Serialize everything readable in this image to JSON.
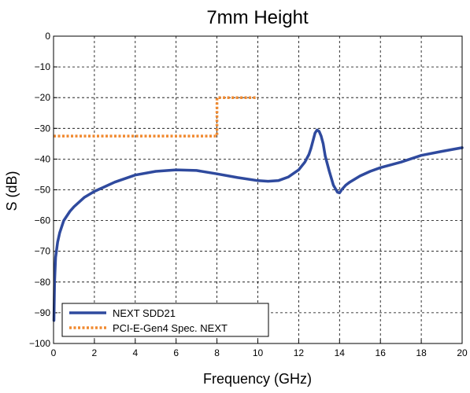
{
  "chart_data": {
    "type": "line",
    "title": "7mm Height",
    "xlabel": "Frequency (GHz)",
    "ylabel": "S (dB)",
    "xlim": [
      0,
      20
    ],
    "ylim": [
      -100,
      0
    ],
    "xticks": [
      0,
      2,
      4,
      6,
      8,
      10,
      12,
      14,
      16,
      18,
      20
    ],
    "yticks": [
      0,
      -10,
      -20,
      -30,
      -40,
      -50,
      -60,
      -70,
      -80,
      -90,
      -100
    ],
    "xtick_labels": [
      "0",
      "2",
      "4",
      "6",
      "8",
      "10",
      "12",
      "14",
      "16",
      "18",
      "20"
    ],
    "ytick_labels": [
      "0",
      "−10",
      "−20",
      "−30",
      "−40",
      "−50",
      "−60",
      "−70",
      "−80",
      "−90",
      "−100"
    ],
    "grid": true,
    "legend_position": "bottom-left",
    "series": [
      {
        "name": "NEXT SDD21",
        "color": "#2f4a9e",
        "style": "solid",
        "x": [
          0.02,
          0.05,
          0.1,
          0.2,
          0.3,
          0.5,
          0.8,
          1.0,
          1.5,
          2.0,
          3.0,
          4.0,
          5.0,
          6.0,
          7.0,
          8.0,
          9.0,
          10.0,
          10.5,
          11.0,
          11.5,
          12.0,
          12.3,
          12.5,
          12.6,
          12.7,
          12.8,
          12.9,
          13.0,
          13.1,
          13.2,
          13.3,
          13.5,
          13.7,
          13.9,
          14.0,
          14.1,
          14.3,
          14.5,
          15.0,
          15.5,
          16.0,
          17.0,
          18.0,
          19.0,
          20.0
        ],
        "y": [
          -92.5,
          -80,
          -72,
          -67,
          -64,
          -60,
          -57,
          -55.5,
          -52.5,
          -50.5,
          -47.5,
          -45.2,
          -44.0,
          -43.5,
          -43.7,
          -44.8,
          -46.0,
          -47.0,
          -47.2,
          -47.0,
          -45.8,
          -43.5,
          -41.0,
          -38.5,
          -36.5,
          -34.0,
          -31.5,
          -30.5,
          -31.0,
          -32.5,
          -35.0,
          -39.0,
          -44.0,
          -48.5,
          -50.8,
          -51.0,
          -50.0,
          -48.5,
          -47.5,
          -45.5,
          -44.0,
          -42.8,
          -41.0,
          -38.8,
          -37.5,
          -36.3
        ]
      },
      {
        "name": "PCI-E-Gen4 Spec. NEXT",
        "color": "#f08a30",
        "style": "dotted",
        "x": [
          0,
          8,
          8,
          10
        ],
        "y": [
          -32.5,
          -32.5,
          -20,
          -20
        ]
      }
    ]
  }
}
